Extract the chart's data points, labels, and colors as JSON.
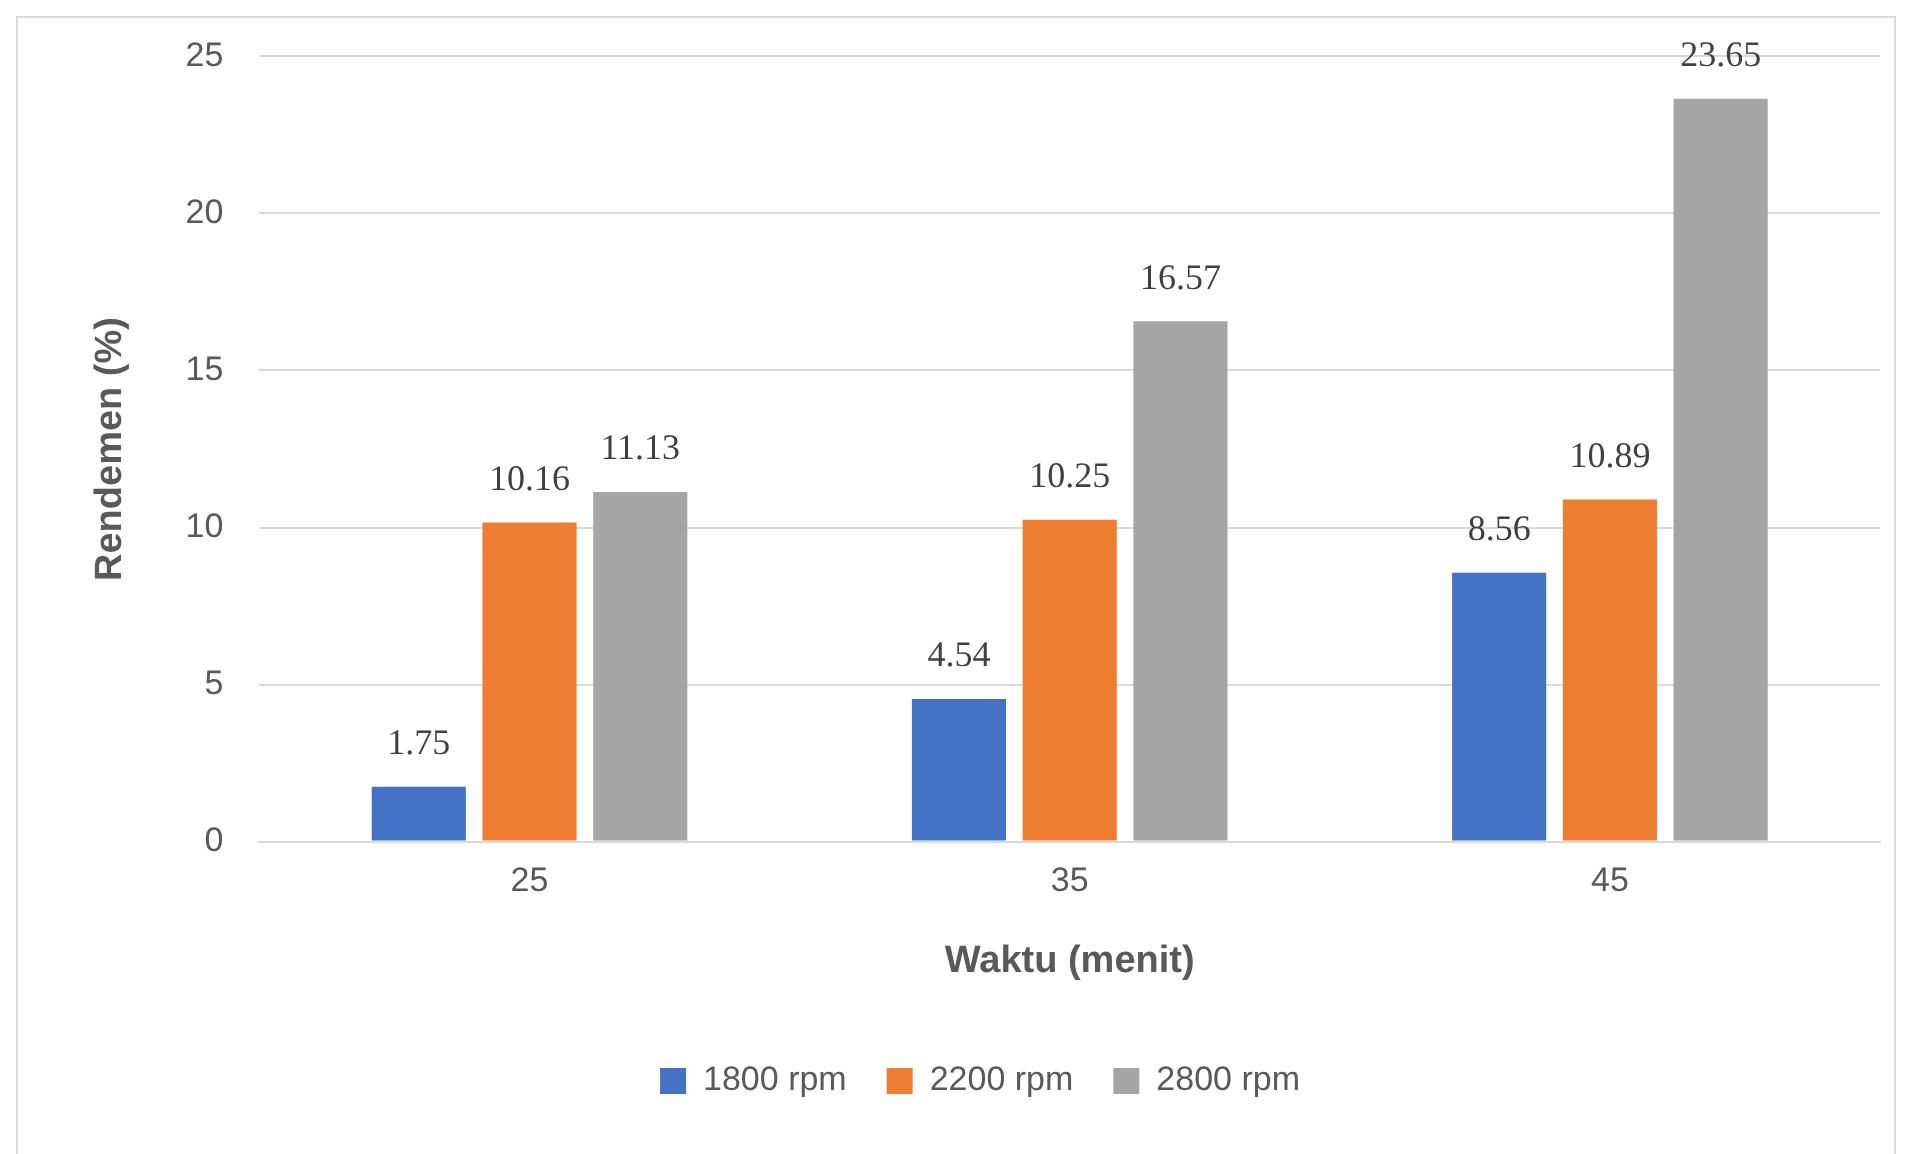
{
  "chart_data": {
    "type": "bar",
    "xlabel": "Waktu (menit)",
    "ylabel": "Rendemen (%)",
    "categories": [
      "25",
      "35",
      "45"
    ],
    "series": [
      {
        "name": "1800 rpm",
        "color": "#4472c4",
        "values": [
          1.75,
          4.54,
          8.56
        ]
      },
      {
        "name": "2200 rpm",
        "color": "#ed7d31",
        "values": [
          10.16,
          10.25,
          10.89
        ]
      },
      {
        "name": "2800 rpm",
        "color": "#a5a5a5",
        "values": [
          11.13,
          16.57,
          23.65
        ]
      }
    ],
    "ylim": [
      0,
      25
    ],
    "yticks": [
      0,
      5,
      10,
      15,
      20,
      25
    ],
    "grid": "y",
    "legend": "bottom",
    "data_labels": true
  }
}
